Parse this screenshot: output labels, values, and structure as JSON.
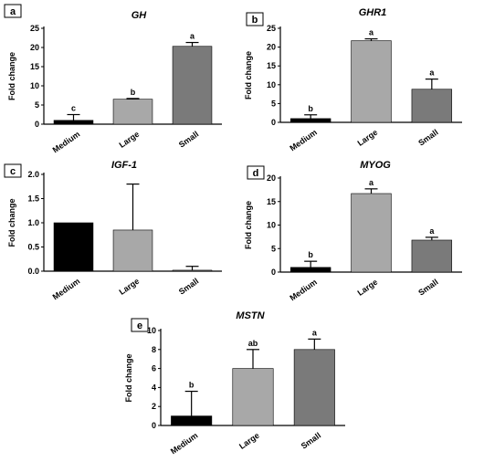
{
  "colors": {
    "Medium": "#000000",
    "Large": "#a8a8a8",
    "Small": "#7a7a7a",
    "axis": "#000000"
  },
  "chart_data": [
    {
      "panel": "a",
      "title": "GH",
      "type": "bar",
      "ylabel": "Fold change",
      "categories": [
        "Medium",
        "Large",
        "Small"
      ],
      "values": [
        1.0,
        6.5,
        20.3
      ],
      "errors": [
        1.5,
        0.2,
        1.0
      ],
      "letters": [
        "c",
        "b",
        "a"
      ],
      "ylim": [
        0,
        25
      ],
      "yticks": [
        "0",
        "5",
        "10",
        "15",
        "20",
        "25"
      ]
    },
    {
      "panel": "b",
      "title": "GHR1",
      "type": "bar",
      "ylabel": "Fold change",
      "categories": [
        "Medium",
        "Large",
        "Small"
      ],
      "values": [
        1.0,
        21.7,
        8.8
      ],
      "errors": [
        1.0,
        0.5,
        2.7
      ],
      "letters": [
        "b",
        "a",
        "a"
      ],
      "ylim": [
        0,
        25
      ],
      "yticks": [
        "0",
        "5",
        "10",
        "15",
        "20",
        "25"
      ]
    },
    {
      "panel": "c",
      "title": "IGF-1",
      "type": "bar",
      "ylabel": "Fold change",
      "categories": [
        "Medium",
        "Large",
        "Small"
      ],
      "values": [
        1.0,
        0.85,
        0.02
      ],
      "errors": [
        0.0,
        0.95,
        0.08
      ],
      "letters": [
        "",
        "",
        ""
      ],
      "ylim": [
        0,
        2.0
      ],
      "yticks": [
        "0.0",
        "0.5",
        "1.0",
        "1.5",
        "2.0"
      ]
    },
    {
      "panel": "d",
      "title": "MYOG",
      "type": "bar",
      "ylabel": "Fold change",
      "categories": [
        "Medium",
        "Large",
        "Small"
      ],
      "values": [
        1.0,
        16.7,
        6.8
      ],
      "errors": [
        1.3,
        1.0,
        0.6
      ],
      "letters": [
        "b",
        "a",
        "a"
      ],
      "ylim": [
        0,
        20
      ],
      "yticks": [
        "0",
        "5",
        "10",
        "15",
        "20"
      ]
    },
    {
      "panel": "e",
      "title": "MSTN",
      "type": "bar",
      "ylabel": "Fold change",
      "categories": [
        "Medium",
        "Large",
        "Small"
      ],
      "values": [
        1.0,
        6.0,
        8.0
      ],
      "errors": [
        2.6,
        2.0,
        1.1
      ],
      "letters": [
        "b",
        "ab",
        "a"
      ],
      "ylim": [
        0,
        10
      ],
      "yticks": [
        "0",
        "2",
        "4",
        "6",
        "8",
        "10"
      ]
    }
  ]
}
